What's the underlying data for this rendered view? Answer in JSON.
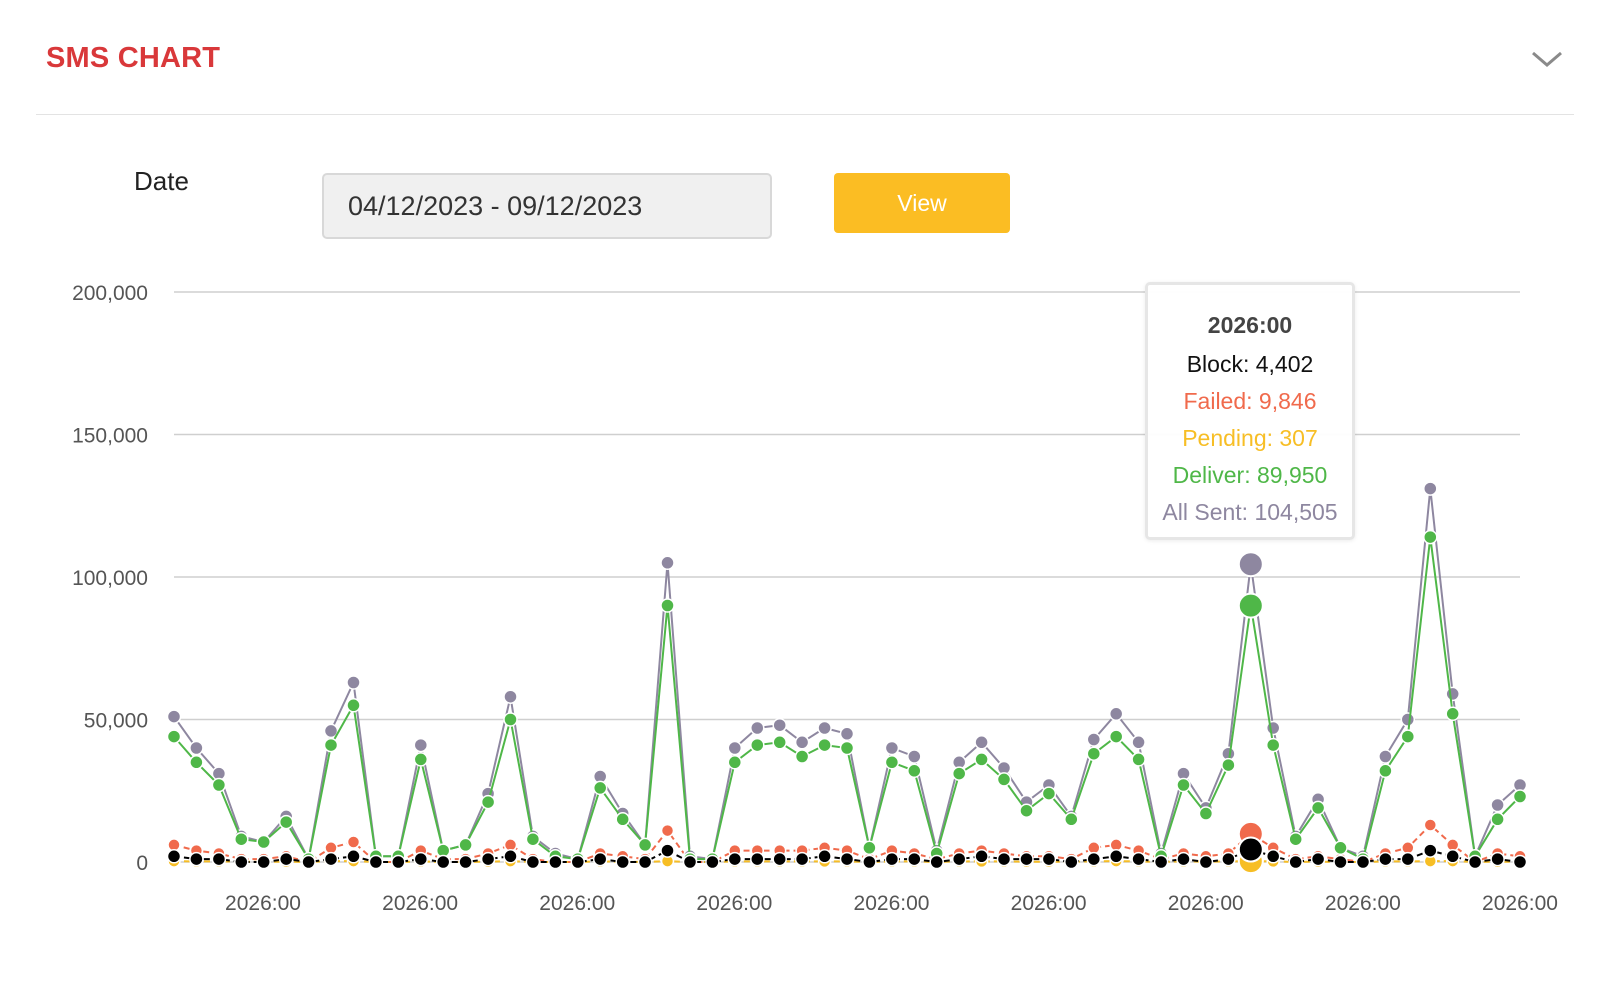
{
  "card": {
    "title": "SMS CHART",
    "collapse_icon": "chevron-down-icon"
  },
  "filter": {
    "label": "Date",
    "date_range": "04/12/2023 - 09/12/2023",
    "button_label": "View"
  },
  "colors": {
    "all_sent": "#8e87a0",
    "deliver": "#4fb748",
    "pending": "#f7be25",
    "failed": "#f06a4c",
    "block": "#000000",
    "title": "#d9383a",
    "button": "#fbbd23"
  },
  "tooltip": {
    "title": "2026:00",
    "block": "Block: 4,402",
    "failed": "Failed: 9,846",
    "pending": "Pending: 307",
    "deliver": "Deliver: 89,950",
    "all_sent": "All Sent: 104,505"
  },
  "chart_data": {
    "type": "line",
    "title": "",
    "xlabel": "",
    "ylabel": "",
    "ylim": [
      0,
      200000
    ],
    "y_ticks": [
      "0",
      "50,000",
      "100,000",
      "150,000",
      "200,000"
    ],
    "x_ticks": [
      "2026:00",
      "2026:00",
      "2026:00",
      "2026:00",
      "2026:00",
      "2026:00",
      "2026:00",
      "2026:00",
      "2026:00"
    ],
    "grid": true,
    "legend": "none",
    "highlighted_index": 48,
    "series": [
      {
        "key": "all_sent",
        "values": [
          51000,
          40000,
          31000,
          9000,
          7000,
          16000,
          1000,
          46000,
          63000,
          2000,
          2000,
          41000,
          4000,
          6000,
          24000,
          58000,
          9000,
          3000,
          1000,
          30000,
          17000,
          6000,
          105000,
          2000,
          1000,
          40000,
          47000,
          48000,
          42000,
          47000,
          45000,
          5000,
          40000,
          37000,
          4000,
          35000,
          42000,
          33000,
          21000,
          27000,
          16000,
          43000,
          52000,
          42000,
          3000,
          31000,
          19000,
          38000,
          104505,
          47000,
          9000,
          22000,
          5000,
          2000,
          37000,
          50000,
          131000,
          59000,
          2000,
          20000,
          27000
        ]
      },
      {
        "key": "deliver",
        "values": [
          44000,
          35000,
          27000,
          8000,
          7000,
          14000,
          1000,
          41000,
          55000,
          2000,
          2000,
          36000,
          4000,
          6000,
          21000,
          50000,
          8000,
          2000,
          1000,
          26000,
          15000,
          6000,
          90000,
          1000,
          1000,
          35000,
          41000,
          42000,
          37000,
          41000,
          40000,
          5000,
          35000,
          32000,
          3000,
          31000,
          36000,
          29000,
          18000,
          24000,
          15000,
          38000,
          44000,
          36000,
          2000,
          27000,
          17000,
          34000,
          89950,
          41000,
          8000,
          19000,
          5000,
          1000,
          32000,
          44000,
          114000,
          52000,
          2000,
          15000,
          23000
        ]
      },
      {
        "key": "failed",
        "values": [
          6000,
          4000,
          3000,
          1000,
          1000,
          2000,
          0,
          5000,
          7000,
          0,
          0,
          4000,
          1000,
          1000,
          3000,
          6000,
          1000,
          0,
          0,
          3000,
          2000,
          1000,
          11000,
          0,
          0,
          4000,
          4000,
          4000,
          4000,
          5000,
          4000,
          1000,
          4000,
          3000,
          1000,
          3000,
          4000,
          3000,
          2000,
          2000,
          1000,
          5000,
          6000,
          4000,
          1000,
          3000,
          2000,
          3000,
          9846,
          5000,
          1000,
          2000,
          1000,
          0,
          3000,
          5000,
          13000,
          6000,
          0,
          3000,
          2000
        ]
      },
      {
        "key": "pending",
        "values": [
          300,
          200,
          200,
          100,
          100,
          100,
          0,
          300,
          300,
          0,
          0,
          200,
          0,
          0,
          100,
          300,
          0,
          0,
          0,
          200,
          100,
          0,
          300,
          0,
          0,
          200,
          200,
          200,
          200,
          200,
          200,
          0,
          200,
          200,
          0,
          200,
          200,
          200,
          100,
          100,
          100,
          200,
          300,
          200,
          0,
          200,
          100,
          200,
          307,
          200,
          0,
          100,
          0,
          0,
          200,
          200,
          300,
          300,
          0,
          100,
          100
        ]
      },
      {
        "key": "block",
        "values": [
          2000,
          1000,
          1000,
          0,
          0,
          1000,
          0,
          1000,
          2000,
          0,
          0,
          1000,
          0,
          0,
          1000,
          2000,
          0,
          0,
          0,
          1000,
          0,
          0,
          4000,
          0,
          0,
          1000,
          1000,
          1000,
          1000,
          2000,
          1000,
          0,
          1000,
          1000,
          0,
          1000,
          2000,
          1000,
          1000,
          1000,
          0,
          1000,
          2000,
          1000,
          0,
          1000,
          0,
          1000,
          4402,
          2000,
          0,
          1000,
          0,
          0,
          1000,
          1000,
          4000,
          2000,
          0,
          1000,
          0
        ]
      }
    ]
  }
}
